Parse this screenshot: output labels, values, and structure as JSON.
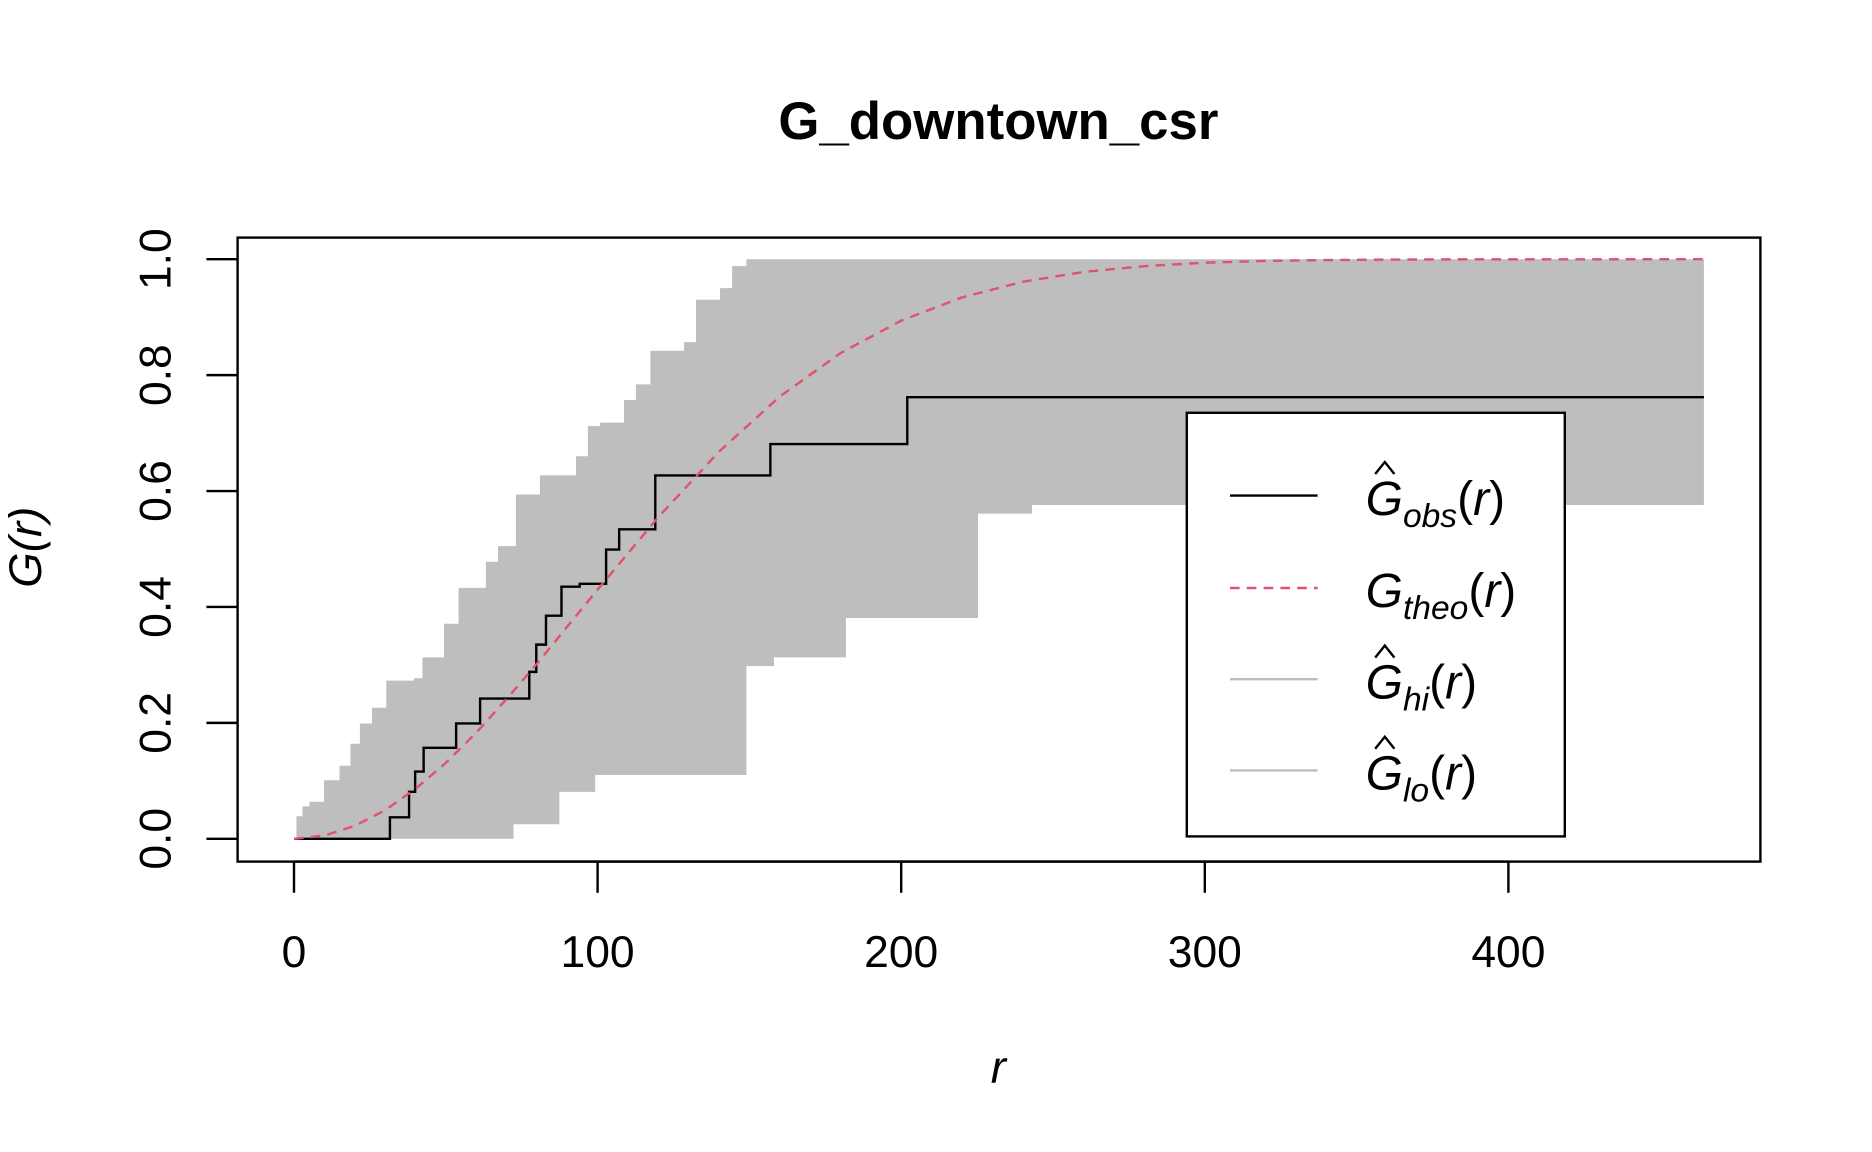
{
  "chart_data": {
    "type": "line",
    "title": "G_downtown_csr",
    "xlabel": "r",
    "ylabel": "G(r)",
    "xlim": [
      0,
      464.4
    ],
    "ylim": [
      0,
      1
    ],
    "x_ticks": [
      "0",
      "100",
      "200",
      "300",
      "400"
    ],
    "y_ticks": [
      "0.0",
      "0.2",
      "0.4",
      "0.6",
      "0.8",
      "1.0"
    ],
    "legend_position": "right",
    "series": [
      {
        "name": "obs",
        "label_main": "G",
        "label_sub": "obs",
        "hat": true,
        "style": "step",
        "color": "#000000",
        "x": [
          0,
          31.6,
          37.9,
          39.9,
          42.7,
          53.4,
          61.3,
          77.5,
          79.8,
          83.0,
          88.1,
          94.1,
          102.8,
          107.1,
          119.0,
          156.9,
          202.0,
          464.4
        ],
        "y": [
          0,
          0.037,
          0.081,
          0.116,
          0.157,
          0.199,
          0.242,
          0.288,
          0.335,
          0.385,
          0.435,
          0.44,
          0.499,
          0.534,
          0.627,
          0.681,
          0.762,
          0.762
        ]
      },
      {
        "name": "theo",
        "label_main": "G",
        "label_sub": "theo",
        "hat": false,
        "style": "dashed",
        "color": "#DF536B",
        "x": [
          0,
          10,
          20,
          30,
          40,
          50,
          60,
          70,
          80,
          90,
          100,
          120,
          140,
          160,
          180,
          200,
          220,
          240,
          260,
          280,
          300,
          320,
          340,
          360,
          380,
          464.4
        ],
        "y": [
          0,
          0.0056,
          0.0222,
          0.0493,
          0.0861,
          0.131,
          0.183,
          0.241,
          0.302,
          0.366,
          0.43,
          0.555,
          0.668,
          0.763,
          0.838,
          0.894,
          0.934,
          0.961,
          0.978,
          0.988,
          0.994,
          0.997,
          0.9985,
          0.9993,
          0.9997,
          1.0
        ]
      },
      {
        "name": "hi",
        "label_main": "G",
        "label_sub": "hi",
        "hat": true,
        "style": "step",
        "color": "#BEBEBE",
        "x": [
          0,
          0.8,
          2.8,
          5.1,
          9.9,
          15,
          18.6,
          21.7,
          25.7,
          30.4,
          39.5,
          42.3,
          49.4,
          54.2,
          63.2,
          67.2,
          73.1,
          81,
          92.9,
          96.8,
          100.8,
          108.7,
          112.6,
          117.4,
          128.5,
          132.4,
          140.3,
          144.3,
          149,
          464.4
        ],
        "y": [
          0,
          0.039,
          0.056,
          0.064,
          0.101,
          0.126,
          0.164,
          0.199,
          0.226,
          0.273,
          0.277,
          0.313,
          0.371,
          0.433,
          0.478,
          0.505,
          0.594,
          0.627,
          0.66,
          0.712,
          0.718,
          0.757,
          0.784,
          0.842,
          0.857,
          0.93,
          0.95,
          0.988,
          1.0,
          1.0
        ]
      },
      {
        "name": "lo",
        "label_main": "G",
        "label_sub": "lo",
        "hat": true,
        "style": "step",
        "color": "#BEBEBE",
        "x": [
          0,
          72.3,
          87.4,
          99.2,
          149,
          158.1,
          181.8,
          225.3,
          243.1,
          464.4
        ],
        "y": [
          0,
          0.025,
          0.081,
          0.11,
          0.298,
          0.313,
          0.381,
          0.561,
          0.576,
          0.576
        ]
      }
    ]
  }
}
